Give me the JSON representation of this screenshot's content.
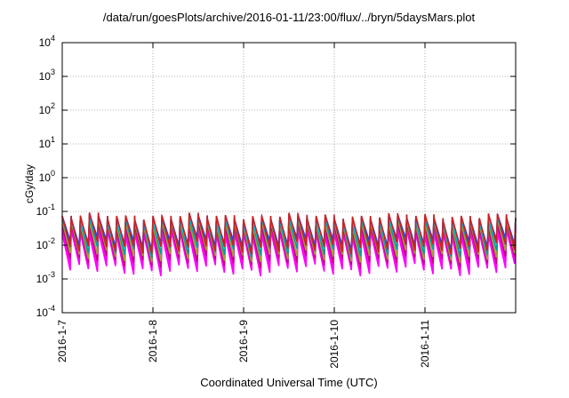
{
  "chart_data": {
    "type": "line",
    "title": "/data/run/goesPlots/archive/2016-01-11/23:00/flux/../bryn/5daysMars.plot",
    "xlabel": "Coordinated Universal Time (UTC)",
    "ylabel": "cGy/day",
    "yscale": "log",
    "ylim": [
      0.0001,
      10000
    ],
    "y_ticks": [
      {
        "value": 0.0001,
        "base": "10",
        "exp": "-4"
      },
      {
        "value": 0.001,
        "base": "10",
        "exp": "-3"
      },
      {
        "value": 0.01,
        "base": "10",
        "exp": "-2"
      },
      {
        "value": 0.1,
        "base": "10",
        "exp": "-1"
      },
      {
        "value": 1,
        "base": "10",
        "exp": "0"
      },
      {
        "value": 10,
        "base": "10",
        "exp": "1"
      },
      {
        "value": 100,
        "base": "10",
        "exp": "2"
      },
      {
        "value": 1000,
        "base": "10",
        "exp": "3"
      },
      {
        "value": 10000,
        "base": "10",
        "exp": "4"
      }
    ],
    "xlim_days": [
      0,
      5
    ],
    "x_ticks": [
      {
        "day": 0,
        "label": "2016-1-7"
      },
      {
        "day": 1,
        "label": "2016-1-8"
      },
      {
        "day": 2,
        "label": "2016-1-9"
      },
      {
        "day": 3,
        "label": "2016-1-10"
      },
      {
        "day": 4,
        "label": "2016-1-11"
      }
    ],
    "grid": true,
    "cycles_per_day": 10,
    "series": [
      {
        "color": "#ff00ff",
        "peak": 0.022,
        "trough": 0.0018
      },
      {
        "color": "#ff00ff",
        "peak": 0.028,
        "trough": 0.0024
      },
      {
        "color": "#c00080",
        "peak": 0.035,
        "trough": 0.0032
      },
      {
        "color": "#a0a030",
        "peak": 0.045,
        "trough": 0.0045
      },
      {
        "color": "#00a0a0",
        "peak": 0.055,
        "trough": 0.0065
      },
      {
        "color": "#00d8d8",
        "peak": 0.06,
        "trough": 0.009
      },
      {
        "color": "#2040ff",
        "peak": 0.065,
        "trough": 0.011
      },
      {
        "color": "#d02020",
        "peak": 0.07,
        "trough": 0.008
      }
    ]
  }
}
